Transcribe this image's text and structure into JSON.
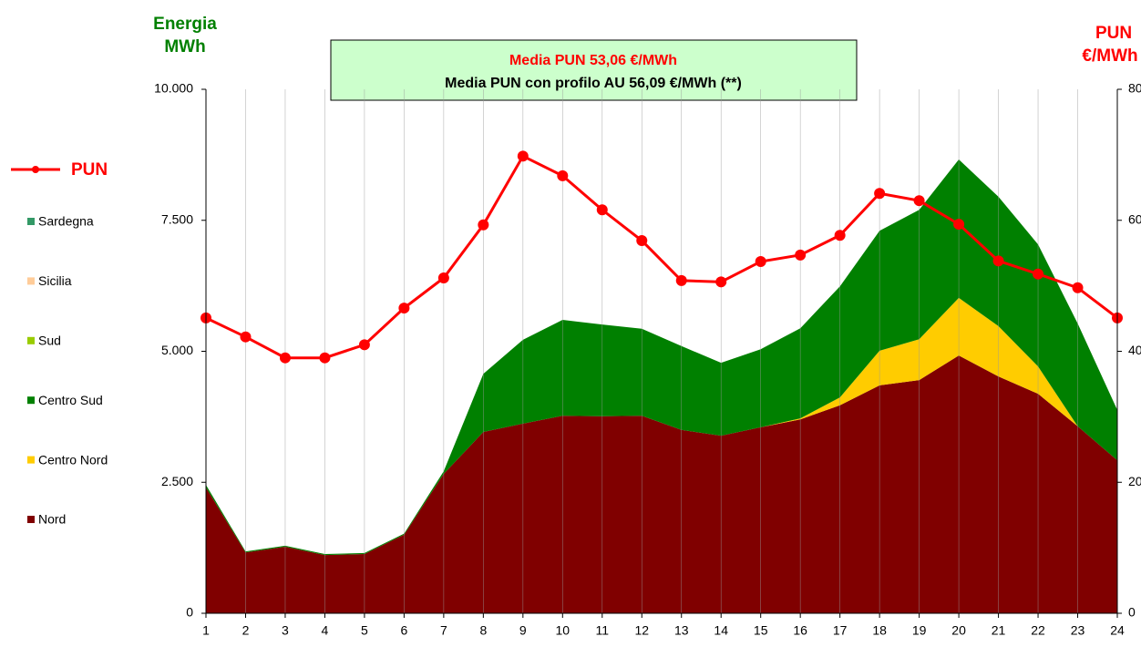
{
  "chart_data": {
    "type": "stacked_area_line",
    "annotation": [
      "Media PUN 53,06  €/MWh",
      "Media PUN con profilo AU 56,09  €/MWh (**)"
    ],
    "y_label": [
      "Energia",
      "MWh"
    ],
    "y2_label": [
      "PUN",
      "€/MWh"
    ],
    "categories": [
      1,
      2,
      3,
      4,
      5,
      6,
      7,
      8,
      9,
      10,
      11,
      12,
      13,
      14,
      15,
      16,
      17,
      18,
      19,
      20,
      21,
      22,
      23,
      24
    ],
    "ylim": [
      0,
      10000
    ],
    "yticks": [
      0,
      {
        "value": 2500,
        "label": "2.500"
      },
      {
        "value": 5000,
        "label": "5.000"
      },
      {
        "value": 7500,
        "label": "7.500"
      },
      {
        "value": 10000,
        "label": "10.000"
      }
    ],
    "y2lim": [
      0,
      80
    ],
    "y2ticks": [
      0,
      20,
      40,
      60,
      80
    ],
    "grid": true,
    "series": [
      {
        "name": "Nord",
        "color": "#800000",
        "values": [
          2400,
          1160,
          1270,
          1110,
          1130,
          1500,
          2660,
          3460,
          3620,
          3770,
          3760,
          3770,
          3500,
          3390,
          3550,
          3700,
          3970,
          4350,
          4450,
          4920,
          4520,
          4190,
          3570,
          2920
        ]
      },
      {
        "name": "Centro Nord",
        "color": "#ffcc00",
        "values": [
          0,
          0,
          0,
          0,
          0,
          0,
          0,
          0,
          0,
          0,
          0,
          0,
          0,
          0,
          0,
          20,
          150,
          660,
          780,
          1100,
          960,
          520,
          0,
          0
        ]
      },
      {
        "name": "Centro Sud",
        "color": "#008000",
        "values": [
          50,
          20,
          20,
          20,
          20,
          20,
          50,
          1110,
          1600,
          1830,
          1750,
          1660,
          1600,
          1390,
          1490,
          1720,
          2120,
          2290,
          2470,
          2640,
          2470,
          2330,
          1960,
          960
        ]
      },
      {
        "name": "Sud",
        "color": "#99cc00",
        "values": [
          0,
          0,
          0,
          0,
          0,
          0,
          0,
          0,
          0,
          0,
          0,
          0,
          0,
          0,
          0,
          0,
          0,
          0,
          0,
          0,
          0,
          0,
          0,
          0
        ]
      },
      {
        "name": "Sicilia",
        "color": "#ffcc99",
        "values": [
          0,
          0,
          0,
          0,
          0,
          0,
          0,
          0,
          0,
          0,
          0,
          0,
          0,
          0,
          0,
          0,
          0,
          0,
          0,
          0,
          0,
          0,
          0,
          0
        ]
      },
      {
        "name": "Sardegna",
        "color": "#339966",
        "values": [
          0,
          0,
          0,
          0,
          0,
          0,
          0,
          0,
          0,
          0,
          0,
          0,
          0,
          0,
          0,
          0,
          0,
          0,
          0,
          0,
          0,
          0,
          0,
          0
        ]
      },
      {
        "name": "PUN",
        "color": "#ff0000",
        "axis": "y2",
        "values": [
          45.1,
          42.2,
          39.0,
          39.0,
          41.0,
          46.6,
          51.2,
          59.3,
          69.8,
          66.8,
          61.6,
          56.9,
          50.8,
          50.6,
          53.7,
          54.7,
          57.7,
          64.1,
          63.0,
          59.4,
          53.8,
          51.8,
          49.7,
          45.1
        ]
      }
    ]
  }
}
